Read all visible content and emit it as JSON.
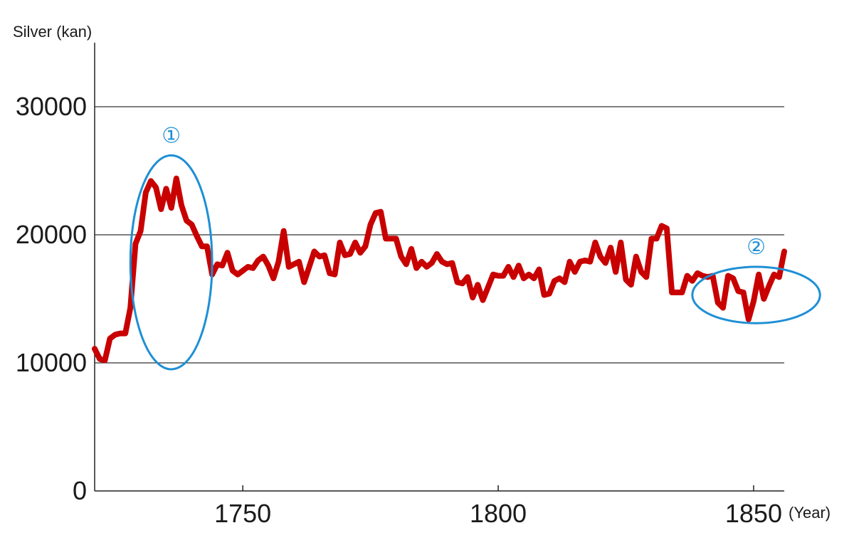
{
  "chart_data": {
    "type": "line",
    "title": "",
    "xlabel": "(Year)",
    "ylabel": "Silver (kan)",
    "xlim": [
      1721,
      1856
    ],
    "ylim": [
      0,
      35000
    ],
    "x_ticks": [
      1750,
      1800,
      1850
    ],
    "x_tick_labels": [
      "1750",
      "1800",
      "1850"
    ],
    "y_ticks": [
      0,
      10000,
      20000,
      30000
    ],
    "y_tick_labels": [
      "0",
      "10000",
      "20000",
      "30000"
    ],
    "grid": "horizontal",
    "legend": "none",
    "colors": {
      "line": "#c80000",
      "annotation": "#1e8fd5",
      "axis": "#222222"
    },
    "series": [
      {
        "x": [
          1721,
          1722,
          1723,
          1724,
          1725,
          1726,
          1727,
          1728,
          1729,
          1730,
          1731,
          1732,
          1733,
          1734,
          1735,
          1736,
          1737,
          1738,
          1739,
          1740,
          1741,
          1742,
          1743,
          1744,
          1745,
          1746,
          1747,
          1748,
          1749,
          1750,
          1751,
          1752,
          1753,
          1754,
          1755,
          1756,
          1757,
          1758,
          1759,
          1760,
          1761,
          1762,
          1763,
          1764,
          1765,
          1766,
          1767,
          1768,
          1769,
          1770,
          1771,
          1772,
          1773,
          1774,
          1775,
          1776,
          1777,
          1778,
          1779,
          1780,
          1781,
          1782,
          1783,
          1784,
          1785,
          1786,
          1787,
          1788,
          1789,
          1790,
          1791,
          1792,
          1793,
          1794,
          1795,
          1796,
          1797,
          1798,
          1799,
          1800,
          1801,
          1802,
          1803,
          1804,
          1805,
          1806,
          1807,
          1808,
          1809,
          1810,
          1811,
          1812,
          1813,
          1814,
          1815,
          1816,
          1817,
          1818,
          1819,
          1820,
          1821,
          1822,
          1823,
          1824,
          1825,
          1826,
          1827,
          1828,
          1829,
          1830,
          1831,
          1832,
          1833,
          1834,
          1835,
          1836,
          1837,
          1838,
          1839,
          1840,
          1841,
          1842,
          1843,
          1844,
          1845,
          1846,
          1847,
          1848,
          1849,
          1850,
          1851,
          1852,
          1853,
          1854,
          1855,
          1856
        ],
        "values": [
          11100,
          10300,
          10200,
          11900,
          12200,
          12300,
          12300,
          14300,
          19300,
          20300,
          23300,
          24200,
          23700,
          22000,
          23600,
          22100,
          24400,
          22300,
          21100,
          20800,
          19900,
          19100,
          19100,
          16900,
          17700,
          17600,
          18600,
          17200,
          16900,
          17200,
          17500,
          17400,
          18000,
          18300,
          17600,
          16600,
          17900,
          20300,
          17500,
          17700,
          17900,
          16300,
          17500,
          18700,
          18300,
          18400,
          17000,
          16900,
          19400,
          18400,
          18500,
          19400,
          18600,
          19100,
          20800,
          21700,
          21800,
          19700,
          19700,
          19700,
          18300,
          17700,
          18900,
          17400,
          17900,
          17500,
          17800,
          18500,
          17900,
          17700,
          17800,
          16300,
          16200,
          16700,
          15100,
          16100,
          14900,
          15900,
          16900,
          16800,
          16800,
          17500,
          16700,
          17600,
          16600,
          16900,
          16600,
          17300,
          15300,
          15400,
          16400,
          16600,
          16300,
          17900,
          17100,
          17900,
          18000,
          17900,
          19400,
          18300,
          17800,
          19000,
          17100,
          19400,
          16500,
          16100,
          18300,
          17100,
          16700,
          19700,
          19700,
          20700,
          20500,
          15500,
          15500,
          15500,
          16800,
          16400,
          17000,
          16800,
          16700,
          16800,
          14700,
          14300,
          16800,
          16600,
          15600,
          15500,
          13400,
          14800,
          16900,
          15000,
          16000,
          16900,
          16700,
          18700
        ]
      }
    ],
    "annotations": [
      {
        "label": "①",
        "x_range": [
          1728,
          1744
        ],
        "y_range": [
          9500,
          26200
        ]
      },
      {
        "label": "②",
        "x_range": [
          1838,
          1863
        ],
        "y_range": [
          13100,
          17500
        ]
      }
    ]
  }
}
